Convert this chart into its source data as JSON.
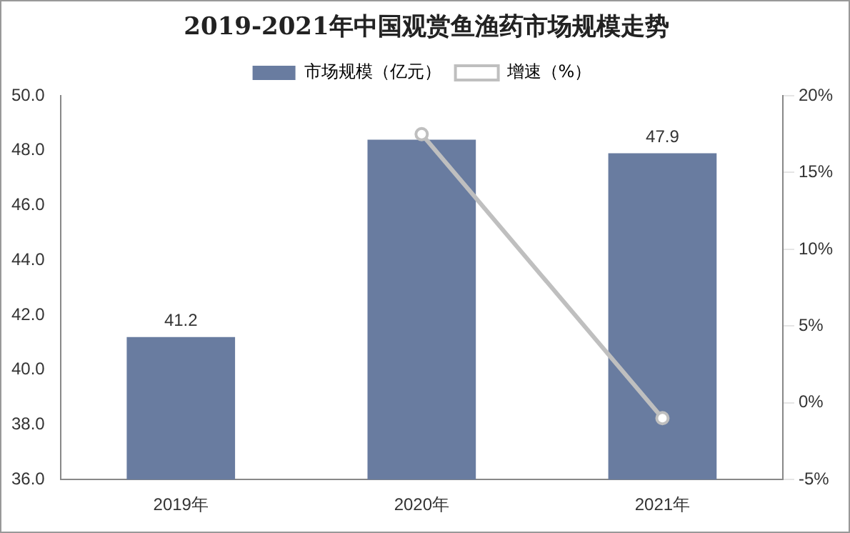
{
  "chart_data": {
    "type": "bar",
    "title": "2019-2021年中国观赏鱼渔药市场规模走势",
    "categories": [
      "2019年",
      "2020年",
      "2021年"
    ],
    "series": [
      {
        "name": "市场规模（亿元）",
        "color": "#697ca0",
        "values": [
          41.2,
          48.4,
          47.9
        ],
        "value_labels": [
          "41.2",
          null,
          "47.9"
        ]
      },
      {
        "name": "增速（%）",
        "type": "line",
        "axis": "y2",
        "color": "#bfbfbf",
        "values": [
          null,
          17.5,
          -1.0
        ],
        "marker": "circle"
      }
    ],
    "ylim": [
      36,
      50
    ],
    "yticks": [
      {
        "value": 36,
        "label": "36.0"
      },
      {
        "value": 38,
        "label": "38.0"
      },
      {
        "value": 40,
        "label": "40.0"
      },
      {
        "value": 42,
        "label": "42.0"
      },
      {
        "value": 44,
        "label": "44.0"
      },
      {
        "value": 46,
        "label": "46.0"
      },
      {
        "value": 48,
        "label": "48.0"
      },
      {
        "value": 50,
        "label": "50.0"
      }
    ],
    "y2lim": [
      -5,
      20
    ],
    "y2ticks": [
      {
        "value": -5,
        "label": "-5%"
      },
      {
        "value": 0,
        "label": "0%"
      },
      {
        "value": 5,
        "label": "5%"
      },
      {
        "value": 10,
        "label": "10%"
      },
      {
        "value": 15,
        "label": "15%"
      },
      {
        "value": 20,
        "label": "20%"
      }
    ],
    "grid": false,
    "legend": "top"
  }
}
